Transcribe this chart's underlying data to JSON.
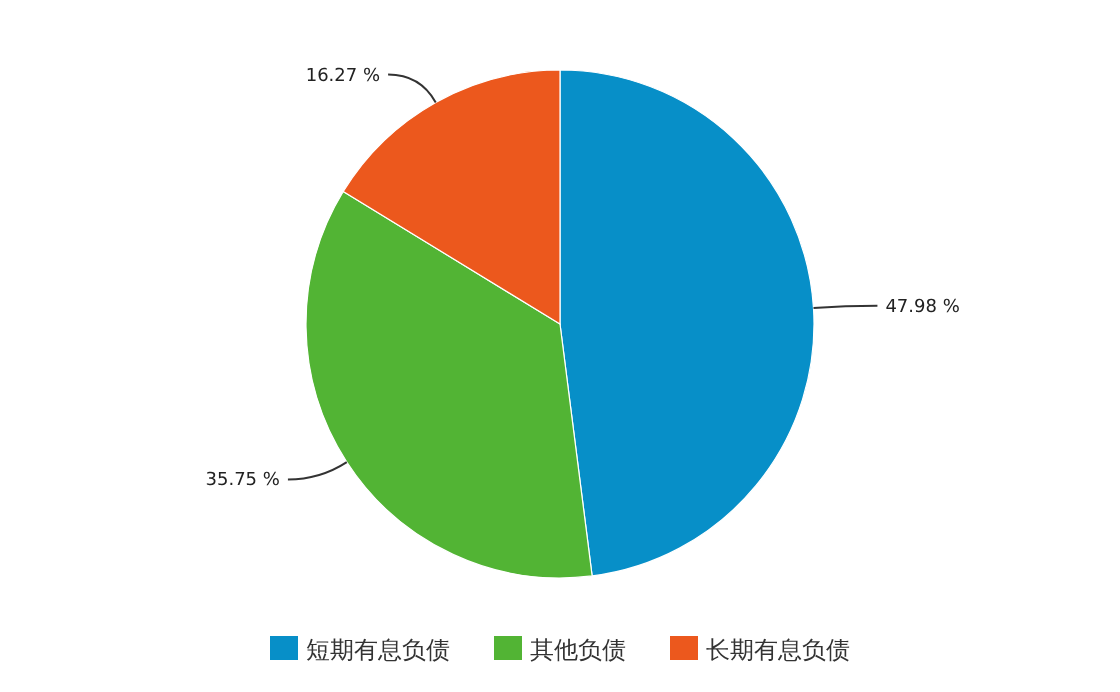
{
  "chart_data": {
    "type": "pie",
    "categories": [
      "短期有息负债",
      "其他负债",
      "长期有息负债"
    ],
    "values": [
      47.98,
      35.75,
      16.27
    ],
    "colors": [
      "#078fc8",
      "#52b434",
      "#ec581d"
    ],
    "value_labels": [
      "47.98 %",
      "35.75 %",
      "16.27 %"
    ],
    "legend": "bottom"
  }
}
